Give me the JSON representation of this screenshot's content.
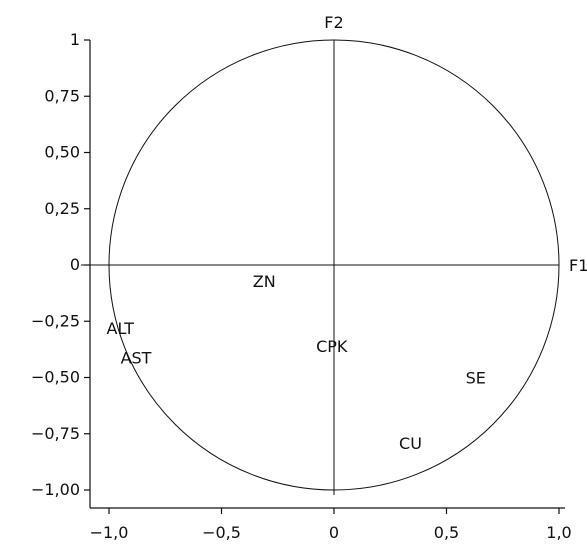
{
  "chart_data": {
    "type": "scatter",
    "chart_subtype": "pca-correlation-circle",
    "title": "",
    "xlabel": "F1",
    "ylabel": "F2",
    "xlim": [
      -1.0,
      1.0
    ],
    "ylim": [
      -1.0,
      1.0
    ],
    "x_ticks": [
      {
        "value": -1.0,
        "label": "−1,0"
      },
      {
        "value": -0.5,
        "label": "−0,5"
      },
      {
        "value": 0,
        "label": "0"
      },
      {
        "value": 0.5,
        "label": "0,5"
      },
      {
        "value": 1.0,
        "label": "1,0"
      }
    ],
    "y_ticks": [
      {
        "value": 1.0,
        "label": "1"
      },
      {
        "value": 0.75,
        "label": "0,75"
      },
      {
        "value": 0.5,
        "label": "0,50"
      },
      {
        "value": 0.25,
        "label": "0,25"
      },
      {
        "value": 0,
        "label": "0"
      },
      {
        "value": -0.25,
        "label": "−0,25"
      },
      {
        "value": -0.5,
        "label": "−0,50"
      },
      {
        "value": -0.75,
        "label": "−0,75"
      },
      {
        "value": -1.0,
        "label": "−1,00"
      }
    ],
    "circle_radius": 1.0,
    "grid": false,
    "legend": "none",
    "variables": [
      {
        "label": "ZN",
        "x": -0.31,
        "y": -0.07
      },
      {
        "label": "ALT",
        "x": -0.95,
        "y": -0.28
      },
      {
        "label": "AST",
        "x": -0.88,
        "y": -0.41
      },
      {
        "label": "CPK",
        "x": -0.01,
        "y": -0.36
      },
      {
        "label": "SE",
        "x": 0.63,
        "y": -0.5
      },
      {
        "label": "CU",
        "x": 0.34,
        "y": -0.79
      }
    ],
    "colors": {
      "line": "#111111",
      "text": "#111111",
      "background": "#ffffff"
    }
  }
}
